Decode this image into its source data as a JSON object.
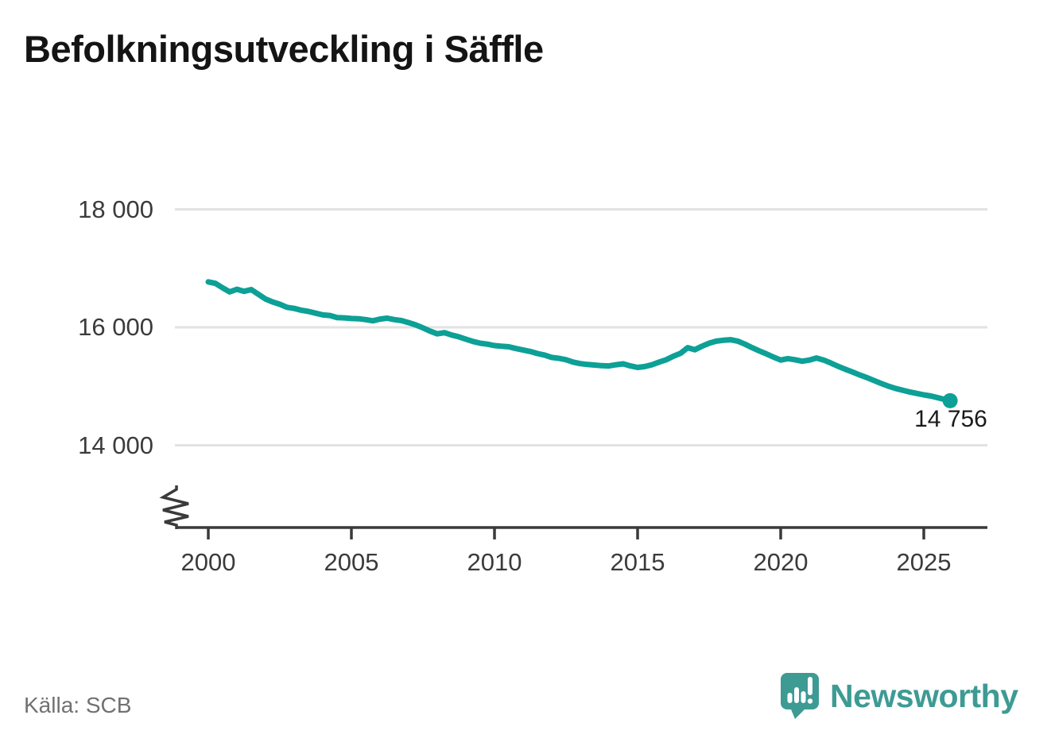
{
  "page": {
    "background": "#ffffff"
  },
  "header": {
    "title": "Befolkningsutveckling i Säffle"
  },
  "source": {
    "label": "Källa: SCB"
  },
  "branding": {
    "name": "Newsworthy",
    "color": "#3d9b94",
    "logo_icon": "speech-bubble-bar-chart-icon"
  },
  "chart_data": {
    "type": "line",
    "title": "Befolkningsutveckling i Säffle",
    "xlabel": "",
    "ylabel": "",
    "grid": "horizontal",
    "legend": "none",
    "axis_break_at_bottom": true,
    "line_color": "#0da096",
    "grid_color": "#e2e2e2",
    "axis_color": "#3a3a3a",
    "xlim": [
      1998.8,
      2027.2
    ],
    "ylim": [
      13300,
      18400
    ],
    "x_ticks": [
      {
        "year": 2000,
        "label": "2000"
      },
      {
        "year": 2005,
        "label": "2005"
      },
      {
        "year": 2010,
        "label": "2010"
      },
      {
        "year": 2015,
        "label": "2015"
      },
      {
        "year": 2020,
        "label": "2020"
      },
      {
        "year": 2025,
        "label": "2025"
      }
    ],
    "y_ticks": [
      {
        "value": 18000,
        "label": "18 000"
      },
      {
        "value": 16000,
        "label": "16 000"
      },
      {
        "value": 14000,
        "label": "14 000"
      }
    ],
    "end_label": "14 756",
    "end_value": 14756,
    "series": [
      {
        "name": "Befolkning i Säffle",
        "x": [
          2000,
          2000.25,
          2000.5,
          2000.75,
          2001,
          2001.25,
          2001.5,
          2001.75,
          2002,
          2002.25,
          2002.5,
          2002.75,
          2003,
          2003.25,
          2003.5,
          2003.75,
          2004,
          2004.25,
          2004.5,
          2004.75,
          2005,
          2005.25,
          2005.5,
          2005.75,
          2006,
          2006.25,
          2006.5,
          2006.75,
          2007,
          2007.25,
          2007.5,
          2007.75,
          2008,
          2008.25,
          2008.5,
          2008.75,
          2009,
          2009.25,
          2009.5,
          2009.75,
          2010,
          2010.25,
          2010.5,
          2010.75,
          2011,
          2011.25,
          2011.5,
          2011.75,
          2012,
          2012.25,
          2012.5,
          2012.75,
          2013,
          2013.25,
          2013.5,
          2013.75,
          2014,
          2014.25,
          2014.5,
          2014.75,
          2015,
          2015.25,
          2015.5,
          2015.75,
          2016,
          2016.25,
          2016.5,
          2016.75,
          2017,
          2017.25,
          2017.5,
          2017.75,
          2018,
          2018.25,
          2018.5,
          2018.75,
          2019,
          2019.25,
          2019.5,
          2019.75,
          2020,
          2020.25,
          2020.5,
          2020.75,
          2021,
          2021.25,
          2021.5,
          2021.75,
          2022,
          2022.25,
          2022.5,
          2022.75,
          2023,
          2023.25,
          2023.5,
          2023.75,
          2024,
          2024.25,
          2024.5,
          2024.75,
          2025,
          2025.25,
          2025.5,
          2025.75,
          2025.92
        ],
        "values": [
          16770,
          16745,
          16670,
          16600,
          16645,
          16610,
          16640,
          16560,
          16480,
          16430,
          16390,
          16340,
          16320,
          16290,
          16270,
          16240,
          16210,
          16200,
          16165,
          16160,
          16150,
          16145,
          16130,
          16110,
          16140,
          16155,
          16130,
          16115,
          16080,
          16040,
          15990,
          15935,
          15890,
          15910,
          15870,
          15840,
          15800,
          15760,
          15730,
          15715,
          15690,
          15680,
          15670,
          15640,
          15615,
          15590,
          15555,
          15530,
          15490,
          15475,
          15450,
          15410,
          15385,
          15370,
          15360,
          15350,
          15345,
          15365,
          15380,
          15345,
          15320,
          15335,
          15365,
          15410,
          15450,
          15510,
          15560,
          15655,
          15620,
          15680,
          15730,
          15765,
          15780,
          15790,
          15765,
          15715,
          15655,
          15600,
          15550,
          15495,
          15445,
          15470,
          15450,
          15425,
          15445,
          15480,
          15445,
          15395,
          15340,
          15290,
          15245,
          15195,
          15150,
          15100,
          15050,
          15005,
          14965,
          14935,
          14905,
          14880,
          14855,
          14835,
          14805,
          14775,
          14756
        ]
      }
    ]
  }
}
